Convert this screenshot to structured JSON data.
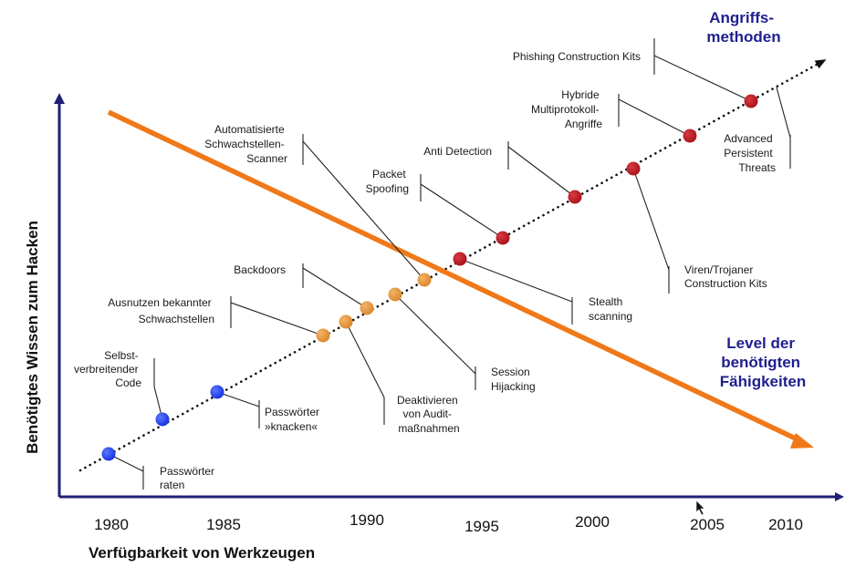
{
  "axes": {
    "y_title": "Benötigtes Wissen zum Hacken",
    "x_title": "Verfügbarkeit von Werkzeugen",
    "years": [
      "1980",
      "1985",
      "1990",
      "1995",
      "2000",
      "2005",
      "2010"
    ]
  },
  "trends": {
    "methods_title_line1": "Angriffs-",
    "methods_title_line2": "methoden",
    "skill_title_line1": "Level der",
    "skill_title_line2": "benötigten",
    "skill_title_line3": "Fähigkeiten"
  },
  "colors": {
    "axis": "#1f1f78",
    "methods_title": "#1f1f8f",
    "skill_line": "#f07818",
    "blue_point": "#1530e0",
    "orange_point": "#e3902f",
    "red_point": "#b3141c"
  },
  "labels": {
    "passwoerter_raten": [
      "Passwörter",
      "raten"
    ],
    "selbst_code": [
      "Selbst-",
      "verbreitender",
      "Code"
    ],
    "passwoerter_knacken": [
      "Passwörter",
      "»knacken«"
    ],
    "ausnutzen": [
      "Ausnutzen bekannter",
      "Schwachstellen"
    ],
    "deaktivieren": [
      "Deaktivieren",
      "von Audit-",
      "maßnahmen"
    ],
    "backdoors": [
      "Backdoors"
    ],
    "session_hijacking": [
      "Session",
      "Hijacking"
    ],
    "auto_scanner": [
      "Automatisierte",
      "Schwachstellen-",
      "Scanner"
    ],
    "stealth": [
      "Stealth",
      "scanning"
    ],
    "packet_spoofing": [
      "Packet",
      "Spoofing"
    ],
    "anti_detection": [
      "Anti Detection"
    ],
    "viren": [
      "Viren/Trojaner",
      "Construction Kits"
    ],
    "hybride": [
      "Hybride",
      "Multiprotokoll-",
      "Angriffe"
    ],
    "phishing": [
      "Phishing Construction Kits"
    ],
    "apt": [
      "Advanced",
      "Persistent",
      "Threats"
    ]
  }
}
